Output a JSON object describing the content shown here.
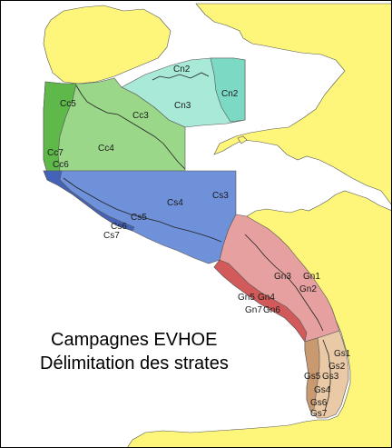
{
  "map": {
    "title_line1": "Campagnes EVHOE",
    "title_line2": "Délimitation des strates",
    "colors": {
      "sea": "#ffffff",
      "land": "#fdf67a",
      "celtic_north": "#a8e9d8",
      "celtic_north_dark": "#7cd9c4",
      "celtic_shelf": "#9bd789",
      "celtic_shelf_dark": "#5fb84a",
      "celtic_slope": "#6f91d9",
      "celtic_slope_dark": "#4462b8",
      "biscay_north": "#e7a0a0",
      "biscay_north_dark": "#d25a5a",
      "biscay_south": "#eac9a6",
      "biscay_south_dark": "#c99a70",
      "contour": "#222222"
    },
    "strata": {
      "cn2_a": "Cn2",
      "cn2_b": "Cn2",
      "cn3": "Cn3",
      "cc5": "Cc5",
      "cc3": "Cc3",
      "cc4": "Cc4",
      "cc7": "Cc7",
      "cc6": "Cc6",
      "cs4": "Cs4",
      "cs3": "Cs3",
      "cs5": "Cs5",
      "cs7": "Cs7",
      "cs6": "Cs6",
      "gn3": "Gn3",
      "gn1": "Gn1",
      "gn2": "Gn2",
      "gn5": "Gn5",
      "gn4": "Gn4",
      "gn7": "Gn7",
      "gn6": "Gn6",
      "gs1": "Gs1",
      "gs2": "Gs2",
      "gs3": "Gs3",
      "gs5": "Gs5",
      "gs4": "Gs4",
      "gs6": "Gs6",
      "gs7": "Gs7"
    }
  }
}
